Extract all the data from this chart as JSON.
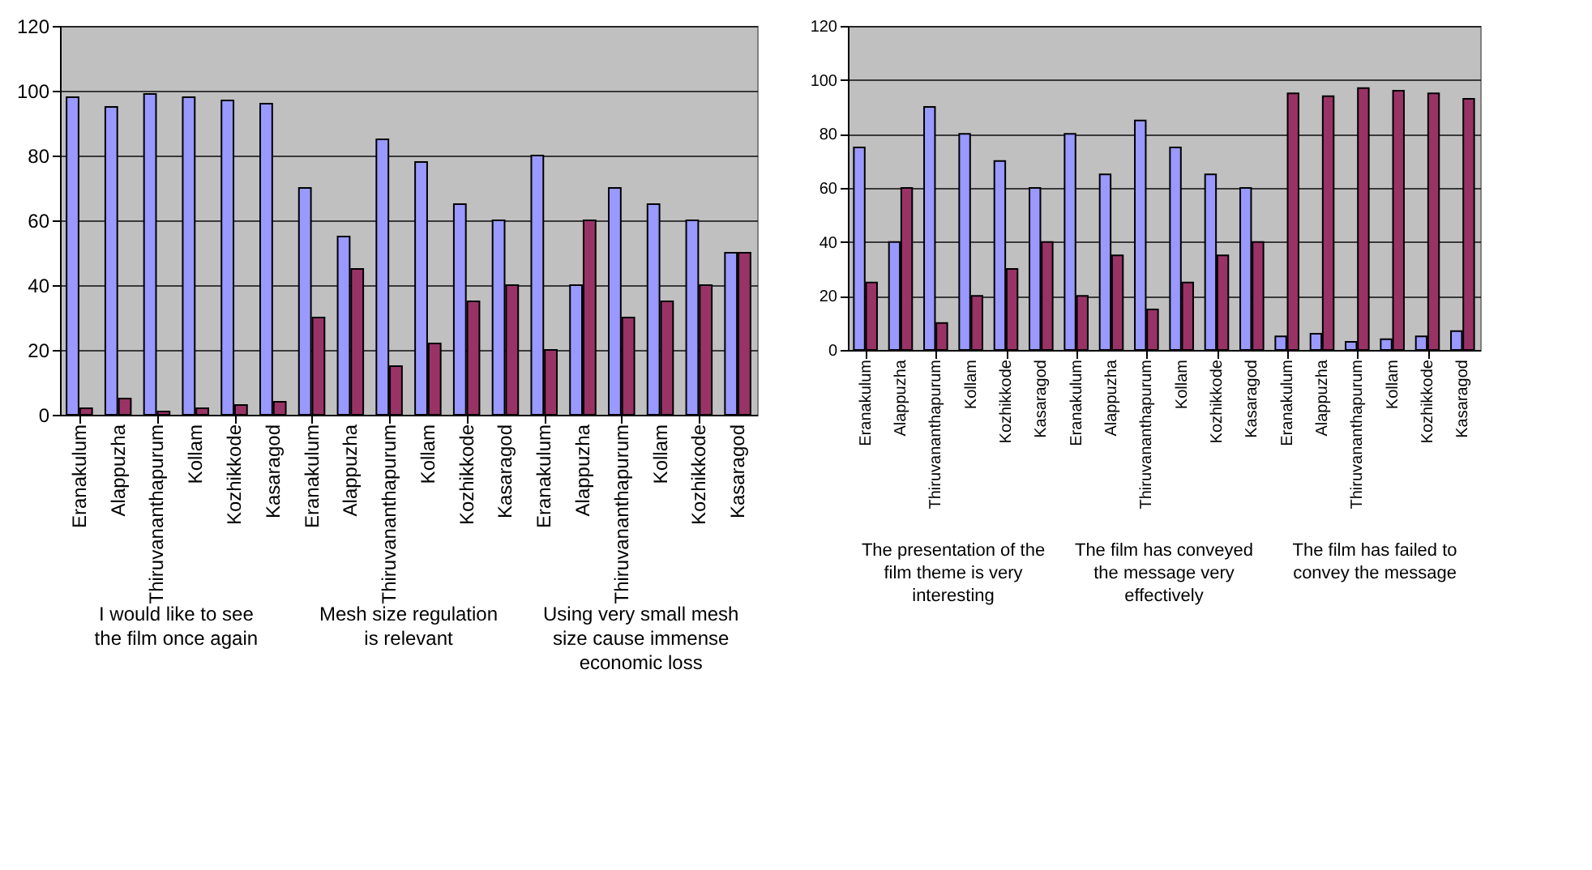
{
  "chart_data": [
    {
      "type": "bar",
      "categories": [
        "Eranakulum",
        "Alappuzha",
        "Thiruvananthapurum",
        "Kollam",
        "Kozhikkode",
        "Kasaragod",
        "Eranakulum",
        "Alappuzha",
        "Thiruvananthapurum",
        "Kollam",
        "Kozhikkode",
        "Kasaragod",
        "Eranakulum",
        "Alappuzha",
        "Thiruvananthapurum",
        "Kollam",
        "Kozhikkode",
        "Kasaragod"
      ],
      "series": [
        {
          "color": "#9999ff",
          "values": [
            98,
            95,
            99,
            98,
            97,
            96,
            70,
            55,
            85,
            78,
            65,
            60,
            80,
            40,
            70,
            65,
            60,
            50
          ]
        },
        {
          "color": "#993366",
          "values": [
            2,
            5,
            1,
            2,
            3,
            4,
            30,
            45,
            15,
            22,
            35,
            40,
            20,
            60,
            30,
            35,
            40,
            50
          ]
        }
      ],
      "annotations": [
        "I would like to see the film once again",
        "Mesh size regulation is relevant",
        "Using very small mesh size cause immense economic loss"
      ],
      "ylim": [
        0,
        120
      ],
      "yticks": [
        0,
        20,
        40,
        60,
        80,
        100,
        120
      ],
      "grid": "y",
      "legend": false
    },
    {
      "type": "bar",
      "categories": [
        "Eranakulum",
        "Alappuzha",
        "Thiruvananthapurum",
        "Kollam",
        "Kozhikkode",
        "Kasaragod",
        "Eranakulum",
        "Alappuzha",
        "Thiruvananthapurum",
        "Kollam",
        "Kozhikkode",
        "Kasaragod",
        "Eranakulum",
        "Alappuzha",
        "Thiruvananthapurum",
        "Kollam",
        "Kozhikkode",
        "Kasaragod"
      ],
      "series": [
        {
          "color": "#9999ff",
          "values": [
            75,
            40,
            90,
            80,
            70,
            60,
            80,
            65,
            85,
            75,
            65,
            60,
            5,
            6,
            3,
            4,
            5,
            7
          ]
        },
        {
          "color": "#993366",
          "values": [
            25,
            60,
            10,
            20,
            30,
            40,
            20,
            35,
            15,
            25,
            35,
            40,
            95,
            94,
            97,
            96,
            95,
            93
          ]
        }
      ],
      "annotations": [
        "The presentation of the film theme is very interesting",
        "The film has conveyed the message very effectively",
        "The film has failed to convey the message"
      ],
      "ylim": [
        0,
        120
      ],
      "yticks": [
        0,
        20,
        40,
        60,
        80,
        100,
        120
      ],
      "grid": "y",
      "legend": false
    }
  ]
}
